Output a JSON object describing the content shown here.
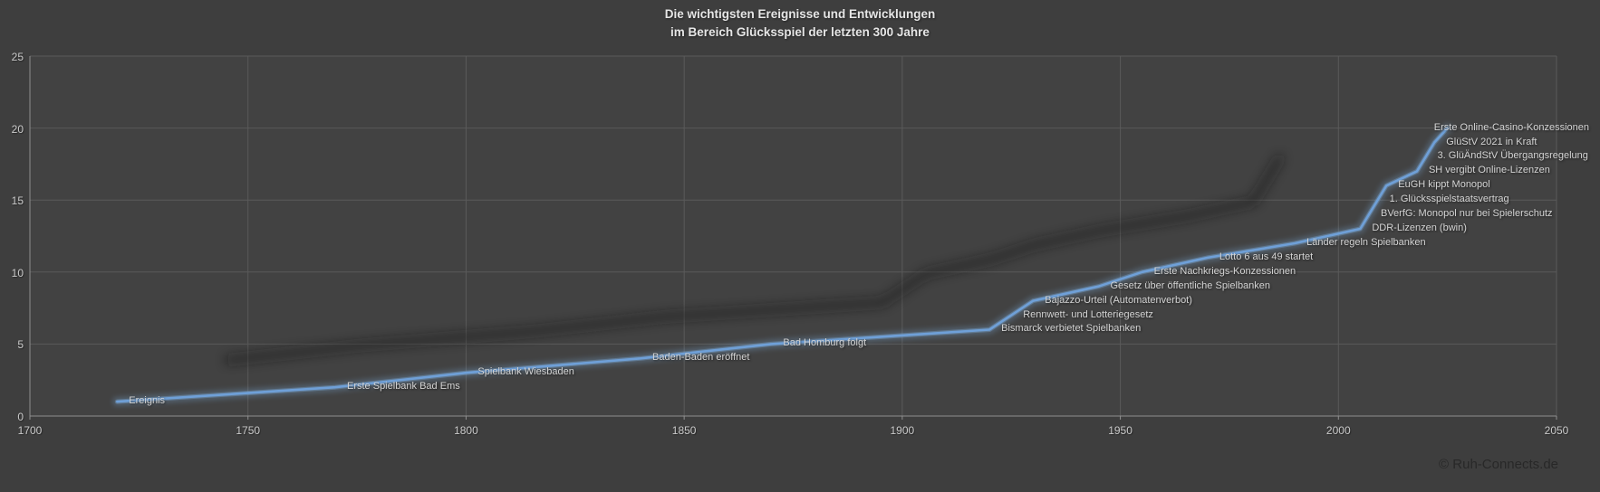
{
  "chart": {
    "title_line1": "Die wichtigsten Ereignisse und Entwicklungen",
    "title_line2": "im Bereich Glücksspiel der letzten 300 Jahre",
    "copyright": "© Ruh-Connects.de"
  },
  "chart_data": {
    "type": "line",
    "title": "Die wichtigsten Ereignisse und Entwicklungen im Bereich Glücksspiel der letzten 300 Jahre",
    "xlabel": "",
    "ylabel": "",
    "xlim": [
      1700,
      2050
    ],
    "ylim": [
      0,
      25
    ],
    "x_ticks": [
      1700,
      1750,
      1800,
      1850,
      1900,
      1950,
      2000,
      2050
    ],
    "y_ticks": [
      0,
      5,
      10,
      15,
      20,
      25
    ],
    "grid": true,
    "legend_position": "none",
    "line_color": "#6FA0D8",
    "line_glow_color": "#7FB0E0",
    "shadow_color": "#161616",
    "background_color": "#3e3e3e",
    "plot_background_color": "#424242",
    "gridline_color": "#5a5a5a",
    "axis_color": "#8f8f8f",
    "label_color": "#d4d4d4",
    "points": [
      {
        "year": 1720,
        "value": 1,
        "label": "Ereignis"
      },
      {
        "year": 1770,
        "value": 2,
        "label": "Erste Spielbank Bad Ems"
      },
      {
        "year": 1800,
        "value": 3,
        "label": "Spielbank Wiesbaden"
      },
      {
        "year": 1840,
        "value": 4,
        "label": "Baden-Baden eröffnet"
      },
      {
        "year": 1870,
        "value": 5,
        "label": "Bad Homburg folgt"
      },
      {
        "year": 1920,
        "value": 6,
        "label": "Bismarck verbietet Spielbanken"
      },
      {
        "year": 1925,
        "value": 7,
        "label": "Rennwett- und Lotteriegesetz"
      },
      {
        "year": 1930,
        "value": 8,
        "label": "Bajazzo-Urteil (Automatenverbot)"
      },
      {
        "year": 1945,
        "value": 9,
        "label": "Gesetz über öffentliche Spielbanken"
      },
      {
        "year": 1955,
        "value": 10,
        "label": "Erste Nachkriegs-Konzessionen"
      },
      {
        "year": 1970,
        "value": 11,
        "label": "Lotto 6 aus 49 startet"
      },
      {
        "year": 1990,
        "value": 12,
        "label": "Länder regeln Spielbanken"
      },
      {
        "year": 2005,
        "value": 13,
        "label": "DDR-Lizenzen (bwin)"
      },
      {
        "year": 2007,
        "value": 14,
        "label": "BVerfG: Monopol nur bei Spielerschutz"
      },
      {
        "year": 2009,
        "value": 15,
        "label": "1. Glücksspielstaatsvertrag"
      },
      {
        "year": 2011,
        "value": 16,
        "label": "EuGH kippt Monopol"
      },
      {
        "year": 2018,
        "value": 17,
        "label": "SH vergibt Online-Lizenzen"
      },
      {
        "year": 2020,
        "value": 18,
        "label": "3. GlüÄndStV Übergangsregelung"
      },
      {
        "year": 2022,
        "value": 19,
        "label": "GlüStV 2021 in Kraft"
      },
      {
        "year": 2025,
        "value": 20,
        "label": "Erste Online-Casino-Konzessionen"
      }
    ]
  }
}
